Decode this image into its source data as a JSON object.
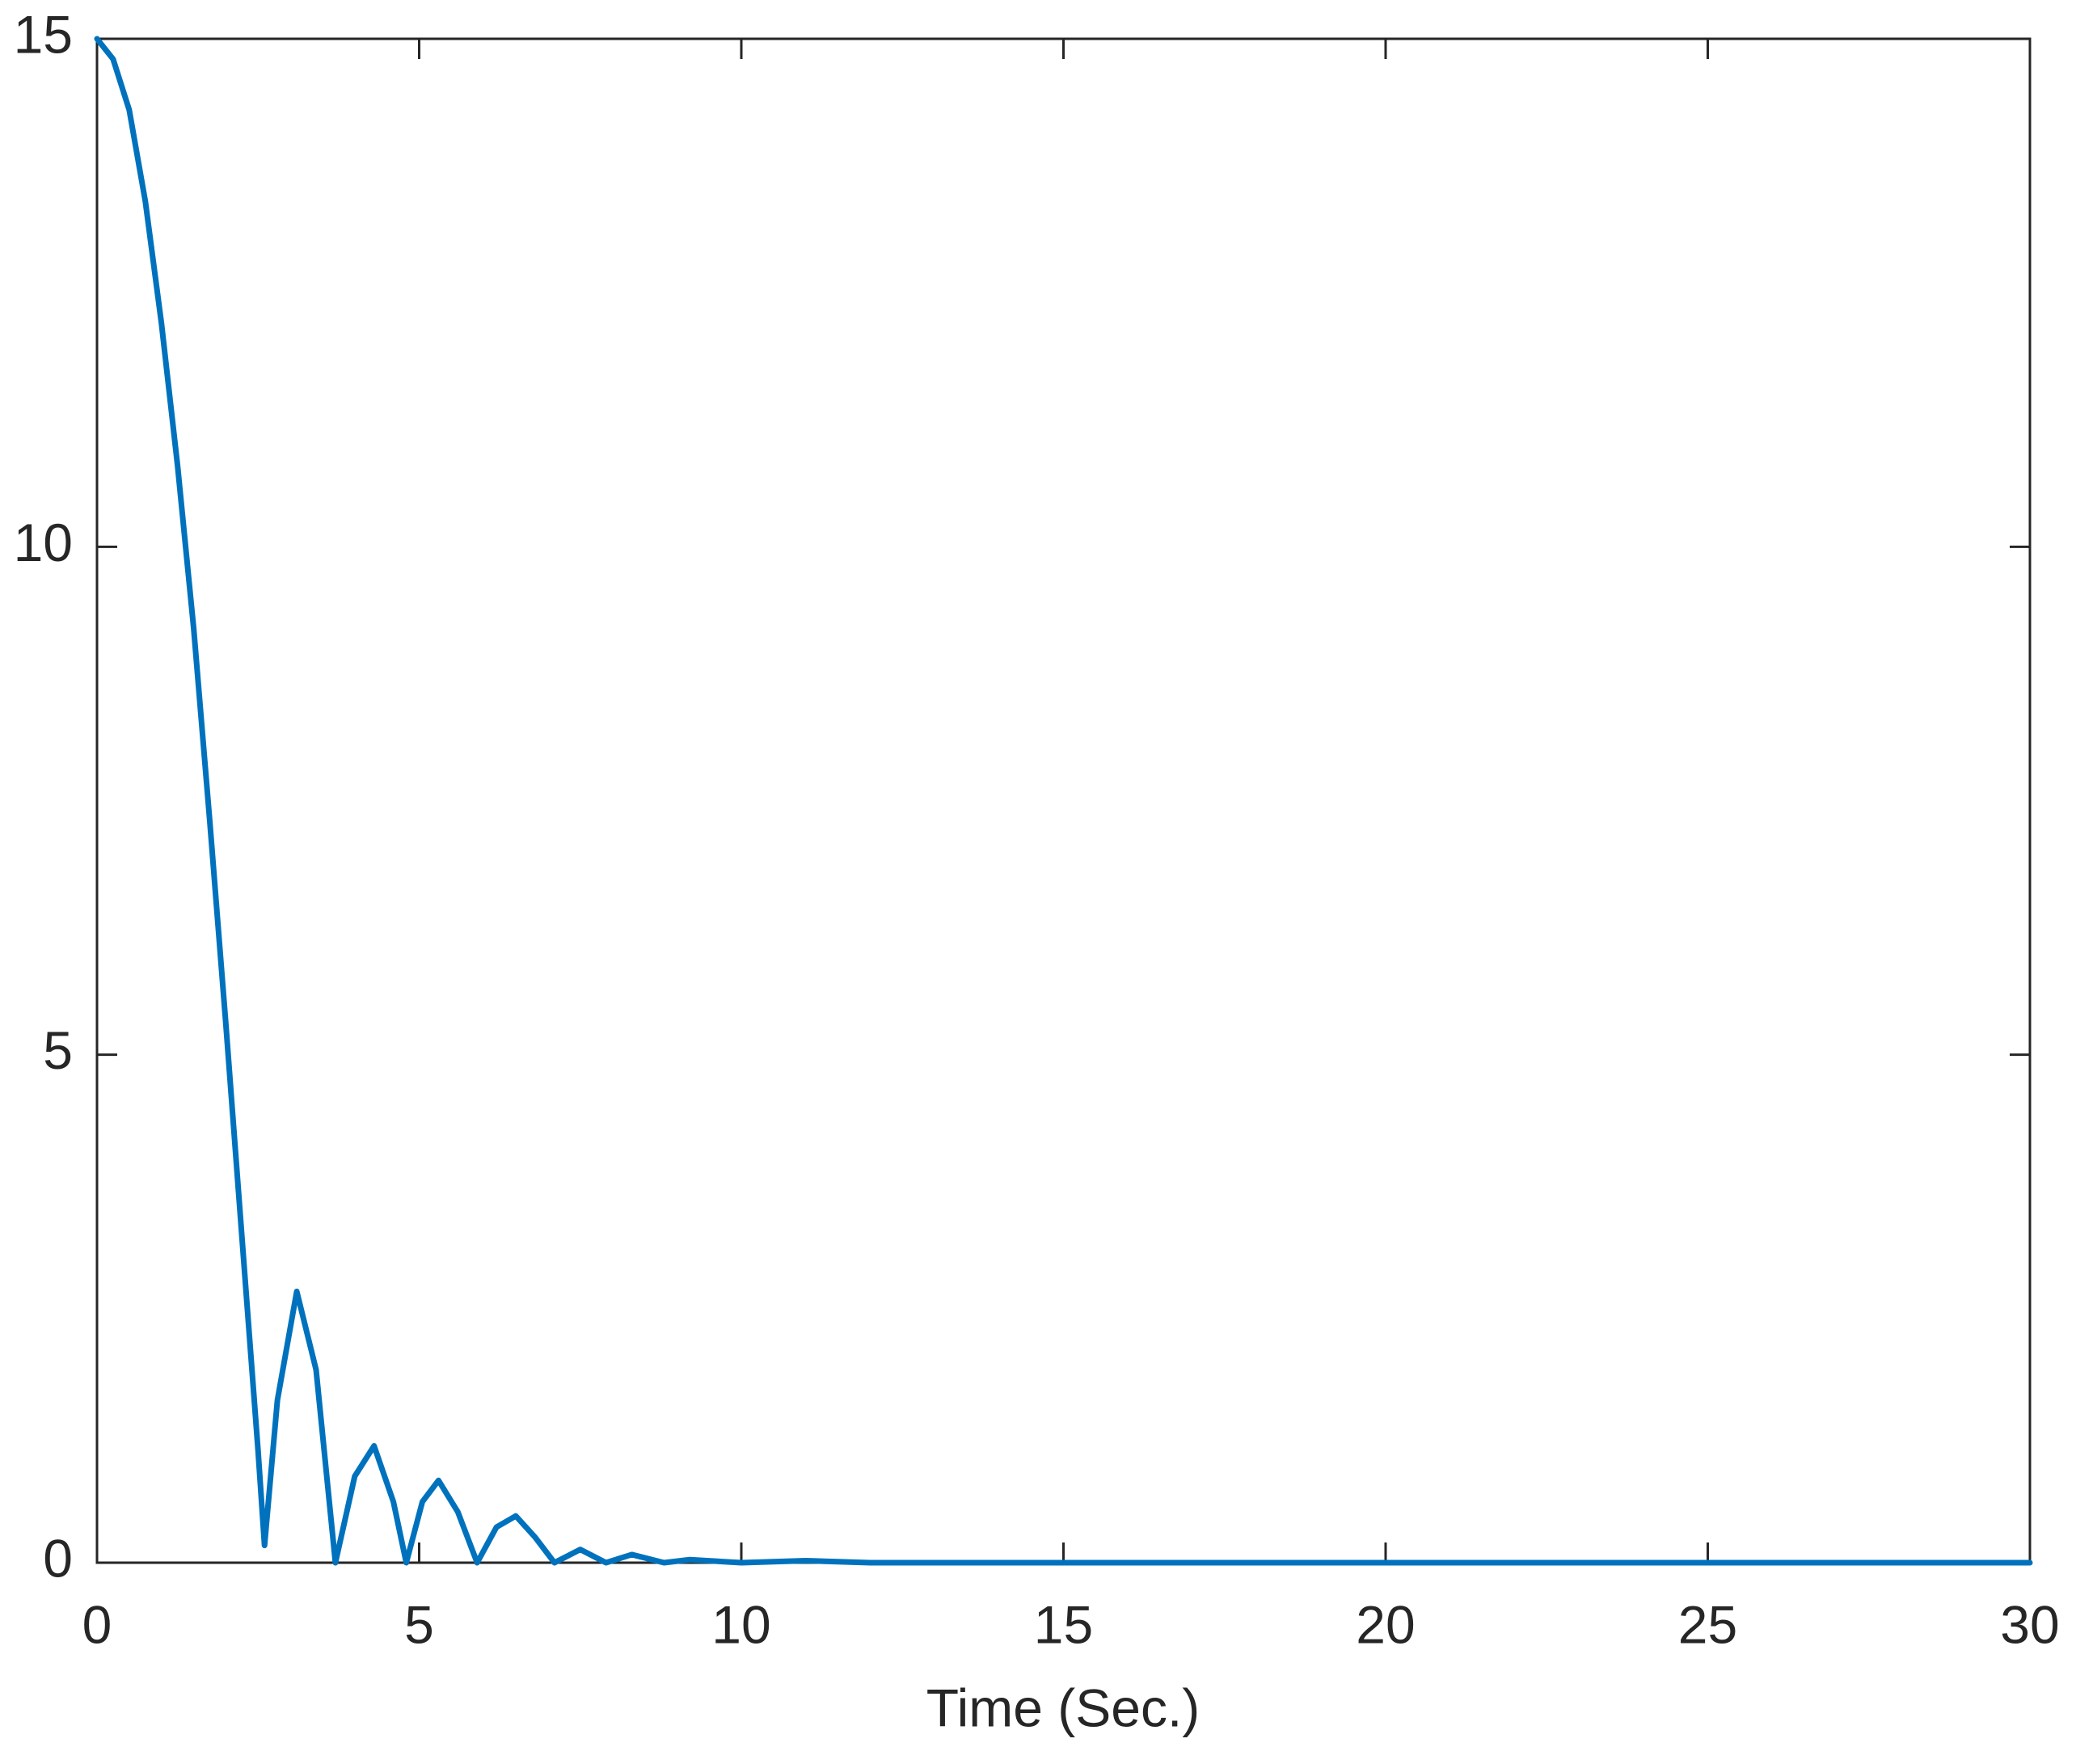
{
  "chart_data": {
    "type": "line",
    "xlabel": "Time (Sec.)",
    "x": [
      0,
      0.25,
      0.5,
      0.75,
      1,
      1.25,
      1.5,
      1.75,
      2,
      2.25,
      2.5,
      2.6,
      2.8,
      3.1,
      3.4,
      3.7,
      4.0,
      4.3,
      4.6,
      4.8,
      5.05,
      5.3,
      5.6,
      5.9,
      6.2,
      6.5,
      6.8,
      7.1,
      7.5,
      7.9,
      8.3,
      8.8,
      9.2,
      10,
      11,
      12,
      15,
      20,
      25,
      30
    ],
    "values": [
      15,
      14.8,
      14.3,
      13.4,
      12.2,
      10.8,
      9.2,
      7.3,
      5.3,
      3.2,
      1.1,
      0.17,
      1.6,
      2.67,
      1.9,
      0,
      0.85,
      1.15,
      0.6,
      0,
      0.6,
      0.81,
      0.5,
      0,
      0.35,
      0.46,
      0.25,
      0,
      0.13,
      0,
      0.08,
      0,
      0.03,
      0,
      0.02,
      0,
      0,
      0,
      0,
      0
    ],
    "color": "#0072bd",
    "xlim": [
      0,
      30
    ],
    "xticks": [
      0,
      5,
      10,
      15,
      20,
      25,
      30
    ],
    "ylim": [
      0,
      15
    ],
    "yticks": [
      0,
      5,
      10,
      15
    ],
    "grid": false
  }
}
